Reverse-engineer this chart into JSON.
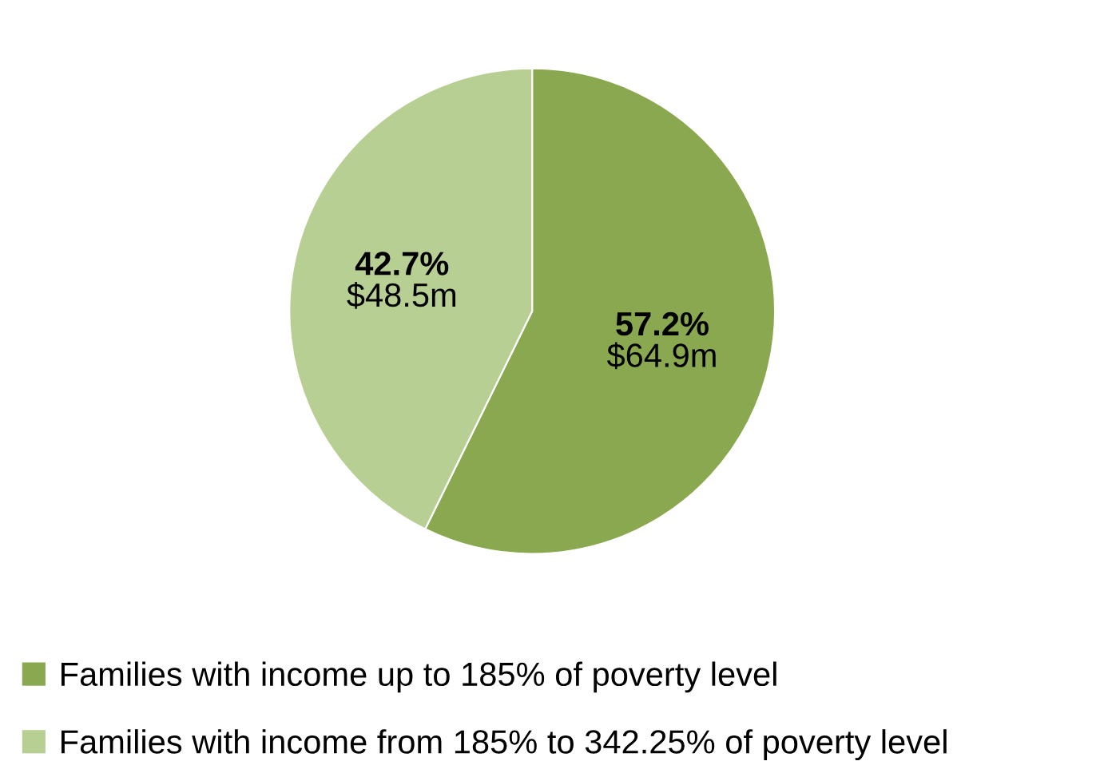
{
  "chart_data": {
    "type": "pie",
    "categories": [
      "Families with income up to 185% of poverty level",
      "Families with income from 185% to 342.25% of poverty level"
    ],
    "values": [
      57.2,
      42.7
    ],
    "colors": [
      "#8aa84f",
      "#b8cf94"
    ],
    "value_labels": [
      "57.2%\n$64.9m",
      "42.7%\n$48.5m"
    ],
    "legend": "bottom"
  }
}
